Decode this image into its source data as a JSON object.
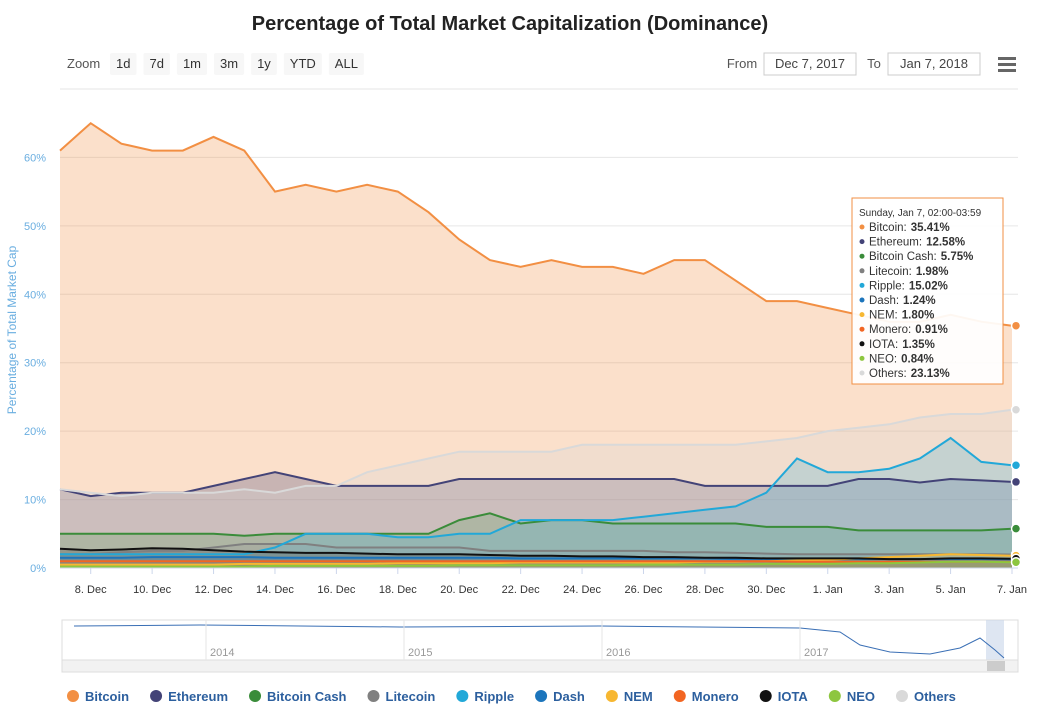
{
  "chart_data": {
    "type": "area",
    "title": "Percentage of Total Market Capitalization (Dominance)",
    "y_label": "Percentage of Total Market Cap",
    "zoom": {
      "label": "Zoom",
      "buttons": [
        "1d",
        "7d",
        "1m",
        "3m",
        "1y",
        "YTD",
        "ALL"
      ]
    },
    "range": {
      "from_label": "From",
      "from": "Dec 7, 2017",
      "to_label": "To",
      "to": "Jan 7, 2018"
    },
    "x": [
      "2017-12-07",
      "2017-12-08",
      "2017-12-09",
      "2017-12-10",
      "2017-12-11",
      "2017-12-12",
      "2017-12-13",
      "2017-12-14",
      "2017-12-15",
      "2017-12-16",
      "2017-12-17",
      "2017-12-18",
      "2017-12-19",
      "2017-12-20",
      "2017-12-21",
      "2017-12-22",
      "2017-12-23",
      "2017-12-24",
      "2017-12-25",
      "2017-12-26",
      "2017-12-27",
      "2017-12-28",
      "2017-12-29",
      "2017-12-30",
      "2017-12-31",
      "2018-01-01",
      "2018-01-02",
      "2018-01-03",
      "2018-01-04",
      "2018-01-05",
      "2018-01-06",
      "2018-01-07"
    ],
    "xlim": [
      "2017-12-07",
      "2018-01-07"
    ],
    "xticks": [
      {
        "value": "2017-12-08",
        "label": "8. Dec"
      },
      {
        "value": "2017-12-10",
        "label": "10. Dec"
      },
      {
        "value": "2017-12-12",
        "label": "12. Dec"
      },
      {
        "value": "2017-12-14",
        "label": "14. Dec"
      },
      {
        "value": "2017-12-16",
        "label": "16. Dec"
      },
      {
        "value": "2017-12-18",
        "label": "18. Dec"
      },
      {
        "value": "2017-12-20",
        "label": "20. Dec"
      },
      {
        "value": "2017-12-22",
        "label": "22. Dec"
      },
      {
        "value": "2017-12-24",
        "label": "24. Dec"
      },
      {
        "value": "2017-12-26",
        "label": "26. Dec"
      },
      {
        "value": "2017-12-28",
        "label": "28. Dec"
      },
      {
        "value": "2017-12-30",
        "label": "30. Dec"
      },
      {
        "value": "2018-01-01",
        "label": "1. Jan"
      },
      {
        "value": "2018-01-03",
        "label": "3. Jan"
      },
      {
        "value": "2018-01-05",
        "label": "5. Jan"
      },
      {
        "value": "2018-01-07",
        "label": "7. Jan"
      }
    ],
    "ylim": [
      0,
      70
    ],
    "yticks": [
      {
        "value": 0,
        "label": "0%"
      },
      {
        "value": 10,
        "label": "10%"
      },
      {
        "value": 20,
        "label": "20%"
      },
      {
        "value": 30,
        "label": "30%"
      },
      {
        "value": 40,
        "label": "40%"
      },
      {
        "value": 50,
        "label": "50%"
      },
      {
        "value": 60,
        "label": "60%"
      }
    ],
    "grid": true,
    "legend": "bottom",
    "series": [
      {
        "name": "Bitcoin",
        "color": "#f28f43",
        "values": [
          61,
          65,
          62,
          61,
          61,
          63,
          61,
          55,
          56,
          55,
          56,
          55,
          52,
          48,
          45,
          44,
          45,
          44,
          44,
          43,
          45,
          45,
          42,
          39,
          39,
          38,
          37,
          36,
          36,
          37,
          36,
          35.41
        ]
      },
      {
        "name": "Ethereum",
        "color": "#434377",
        "values": [
          11.5,
          10.5,
          11,
          11,
          11,
          12,
          13,
          14,
          13,
          12,
          12,
          12,
          12,
          13,
          13,
          13,
          13,
          13,
          13,
          13,
          13,
          12,
          12,
          12,
          12,
          12,
          13,
          13,
          12.5,
          13,
          12.8,
          12.58
        ]
      },
      {
        "name": "Bitcoin Cash",
        "color": "#3a8c3a",
        "values": [
          5,
          5,
          5,
          5,
          5,
          5,
          4.7,
          5,
          5,
          5,
          5,
          5,
          5,
          7,
          8,
          6.5,
          7,
          7,
          6.5,
          6.5,
          6.5,
          6.5,
          6.5,
          6,
          6,
          6,
          5.5,
          5.5,
          5.5,
          5.5,
          5.5,
          5.75
        ]
      },
      {
        "name": "Litecoin",
        "color": "#808080",
        "values": [
          2,
          2,
          2.3,
          2.5,
          2.5,
          3,
          3.5,
          3.5,
          3.5,
          3,
          3,
          3,
          3,
          3,
          2.5,
          2.5,
          2.5,
          2.5,
          2.5,
          2.5,
          2.3,
          2.3,
          2.2,
          2.1,
          2,
          2,
          2,
          2,
          2,
          2,
          2,
          1.98
        ]
      },
      {
        "name": "Ripple",
        "color": "#22a8d8",
        "values": [
          2,
          2,
          2,
          2,
          2,
          2,
          2,
          3,
          5,
          5,
          5,
          4.5,
          4.5,
          5,
          5,
          7,
          7,
          7,
          7,
          7.5,
          8,
          8.5,
          9,
          11,
          16,
          14,
          14,
          14.5,
          16,
          19,
          15.5,
          15.02
        ]
      },
      {
        "name": "Dash",
        "color": "#1c75bc",
        "values": [
          1.5,
          1.5,
          1.5,
          1.6,
          1.6,
          1.6,
          1.6,
          1.5,
          1.5,
          1.5,
          1.5,
          1.5,
          1.5,
          1.5,
          1.5,
          1.4,
          1.4,
          1.4,
          1.4,
          1.4,
          1.4,
          1.4,
          1.3,
          1.3,
          1.3,
          1.3,
          1.3,
          1.3,
          1.3,
          1.3,
          1.3,
          1.24
        ]
      },
      {
        "name": "NEM",
        "color": "#f7b731",
        "values": [
          0.5,
          0.5,
          0.5,
          0.5,
          0.5,
          0.5,
          0.6,
          0.6,
          0.6,
          0.6,
          0.6,
          0.7,
          0.7,
          0.7,
          0.7,
          0.8,
          0.8,
          0.8,
          0.8,
          0.8,
          0.8,
          0.9,
          0.9,
          1,
          1.1,
          1.2,
          1.4,
          1.6,
          1.8,
          2,
          1.9,
          1.8
        ]
      },
      {
        "name": "Monero",
        "color": "#f26522",
        "values": [
          1,
          1,
          1,
          1,
          1,
          1,
          1,
          1,
          1,
          1,
          1,
          1,
          1,
          1,
          1,
          1,
          1,
          1,
          1,
          1,
          1,
          1,
          1,
          1,
          0.9,
          0.9,
          0.9,
          0.9,
          0.9,
          0.9,
          0.9,
          0.91
        ]
      },
      {
        "name": "IOTA",
        "color": "#111111",
        "values": [
          2.8,
          2.6,
          2.7,
          2.9,
          2.8,
          2.6,
          2.4,
          2.3,
          2.2,
          2.2,
          2.1,
          2,
          2,
          2,
          1.9,
          1.8,
          1.8,
          1.7,
          1.7,
          1.6,
          1.6,
          1.5,
          1.5,
          1.4,
          1.4,
          1.4,
          1.4,
          1.3,
          1.3,
          1.4,
          1.4,
          1.35
        ]
      },
      {
        "name": "NEO",
        "color": "#8dc63f",
        "values": [
          0.2,
          0.2,
          0.2,
          0.2,
          0.2,
          0.2,
          0.2,
          0.3,
          0.3,
          0.3,
          0.3,
          0.3,
          0.3,
          0.4,
          0.4,
          0.4,
          0.4,
          0.4,
          0.4,
          0.5,
          0.5,
          0.5,
          0.5,
          0.6,
          0.6,
          0.6,
          0.7,
          0.7,
          0.8,
          0.9,
          0.9,
          0.84
        ]
      },
      {
        "name": "Others",
        "color": "#d9d9d9",
        "values": [
          11.5,
          11,
          10.5,
          11,
          11,
          11,
          11.5,
          11,
          12,
          12,
          14,
          15,
          16,
          17,
          17,
          17,
          17,
          18,
          18,
          18,
          18,
          18,
          18,
          18.5,
          19,
          20,
          20.5,
          21,
          22,
          22.5,
          22.5,
          23.13
        ]
      }
    ],
    "tooltip": {
      "header": "Sunday, Jan 7, 02:00-03:59",
      "rows": [
        {
          "label": "Bitcoin:",
          "value": "35.41%"
        },
        {
          "label": "Ethereum:",
          "value": "12.58%"
        },
        {
          "label": "Bitcoin Cash:",
          "value": "5.75%"
        },
        {
          "label": "Litecoin:",
          "value": "1.98%"
        },
        {
          "label": "Ripple:",
          "value": "15.02%"
        },
        {
          "label": "Dash:",
          "value": "1.24%"
        },
        {
          "label": "NEM:",
          "value": "1.80%"
        },
        {
          "label": "Monero:",
          "value": "0.91%"
        },
        {
          "label": "IOTA:",
          "value": "1.35%"
        },
        {
          "label": "NEO:",
          "value": "0.84%"
        },
        {
          "label": "Others:",
          "value": "23.13%"
        }
      ]
    },
    "navigator": {
      "labels": [
        "2014",
        "2015",
        "2016",
        "2017"
      ]
    }
  }
}
